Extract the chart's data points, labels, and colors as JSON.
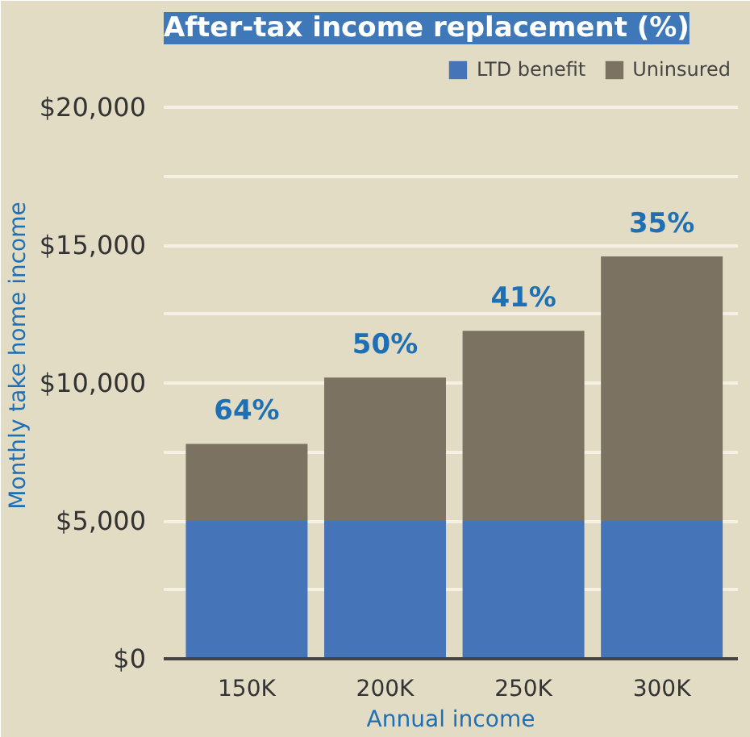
{
  "chart_data": {
    "type": "bar",
    "title": "After-tax income replacement (%)",
    "xlabel": "Annual income",
    "ylabel": "Monthly take home income",
    "categories": [
      "150K",
      "200K",
      "250K",
      "300K"
    ],
    "stacked": true,
    "series": [
      {
        "name": "LTD benefit",
        "color": "#4674b8",
        "values": [
          5000,
          5000,
          5000,
          5000
        ]
      },
      {
        "name": "Uninsured",
        "color": "#7c7262",
        "values": [
          2800,
          5200,
          6900,
          9600
        ]
      }
    ],
    "ylim": [
      0,
      22000
    ],
    "yticks": [
      {
        "value": 0,
        "label": "$0"
      },
      {
        "value": 2500,
        "label": null
      },
      {
        "value": 5000,
        "label": "$5,000"
      },
      {
        "value": 7500,
        "label": null
      },
      {
        "value": 10000,
        "label": "$10,000"
      },
      {
        "value": 12500,
        "label": null
      },
      {
        "value": 15000,
        "label": "$15,000"
      },
      {
        "value": 17500,
        "label": null
      },
      {
        "value": 20000,
        "label": "$20,000"
      }
    ],
    "annotations": [
      {
        "text": "64%",
        "x": "150K",
        "y": 7800
      },
      {
        "text": "50%",
        "x": "200K",
        "y": 10200
      },
      {
        "text": "41%",
        "x": "250K",
        "y": 11900
      },
      {
        "text": "35%",
        "x": "300K",
        "y": 14600
      }
    ],
    "grid": "y",
    "legend": "top right"
  }
}
